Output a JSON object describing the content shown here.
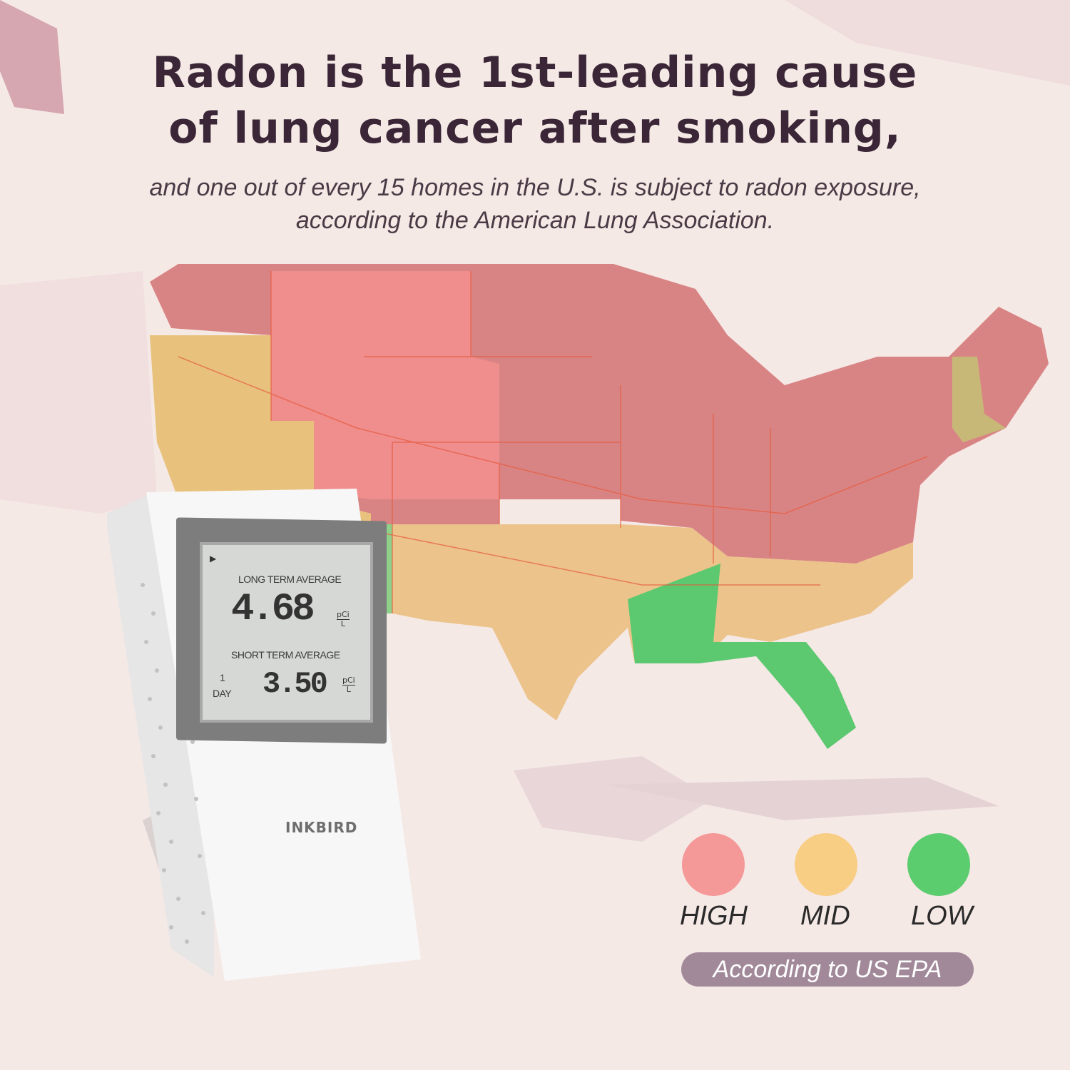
{
  "headline": {
    "line1": "Radon is the 1st-leading cause",
    "line2": "of lung cancer after smoking,"
  },
  "subheadline": {
    "line1": "and one out of every 15 homes in the U.S. is subject to radon exposure,",
    "line2": "according to the American Lung Association."
  },
  "device": {
    "brand": "INKBIRD",
    "long_term_label": "LONG TERM AVERAGE",
    "long_term_value": "4.68",
    "short_term_label": "SHORT TERM AVERAGE",
    "short_term_value": "3.50",
    "unit_top": "pCi",
    "unit_bottom": "L",
    "period_number": "1",
    "period_unit": "DAY"
  },
  "legend": {
    "items": [
      {
        "label": "HIGH",
        "color": "#f59898"
      },
      {
        "label": "MID",
        "color": "#f8cd84"
      },
      {
        "label": "LOW",
        "color": "#5ccd6e"
      }
    ],
    "source": "According to US EPA"
  },
  "colors": {
    "background": "#f5e9e6",
    "high_zone": "#d98080",
    "mid_zone": "#e8c080",
    "low_zone": "#5cc870",
    "headline": "#3a2636"
  }
}
